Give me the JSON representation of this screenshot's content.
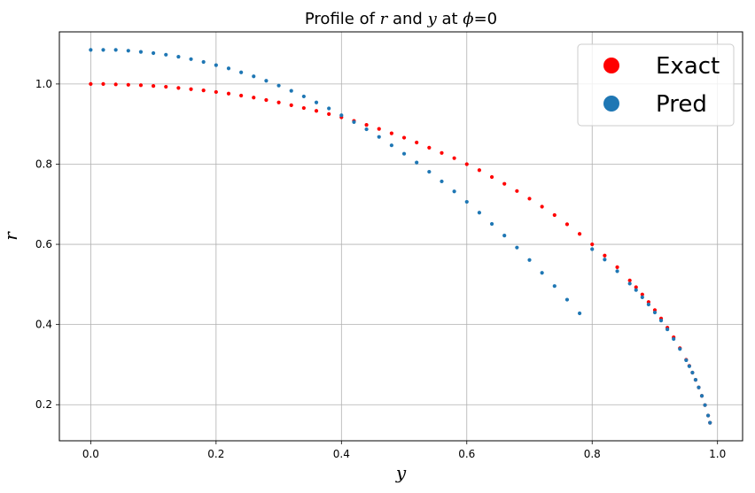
{
  "chart_data": {
    "type": "scatter",
    "title": "Profile of r and y at ϕ=0",
    "title_parts": {
      "pre": "Profile of ",
      "var1": "r",
      "mid": " and ",
      "var2": "y",
      "post": " at ",
      "phi": "ϕ",
      "eq": "=0"
    },
    "xlabel": "y",
    "ylabel": "r",
    "xlim": [
      -0.05,
      1.04
    ],
    "ylim": [
      0.11,
      1.13
    ],
    "xticks": [
      0.0,
      0.2,
      0.4,
      0.6,
      0.8,
      1.0
    ],
    "xtick_labels": [
      "0.0",
      "0.2",
      "0.4",
      "0.6",
      "0.8",
      "1.0"
    ],
    "yticks": [
      0.2,
      0.4,
      0.6,
      0.8,
      1.0
    ],
    "ytick_labels": [
      "0.2",
      "0.4",
      "0.6",
      "0.8",
      "1.0"
    ],
    "grid": true,
    "legend_position": "top-right",
    "series": [
      {
        "name": "Exact",
        "color": "#ff0000",
        "x": [
          0.0,
          0.02,
          0.04,
          0.06,
          0.08,
          0.1,
          0.12,
          0.14,
          0.16,
          0.18,
          0.2,
          0.22,
          0.24,
          0.26,
          0.28,
          0.3,
          0.32,
          0.34,
          0.36,
          0.38,
          0.4,
          0.42,
          0.44,
          0.46,
          0.48,
          0.5,
          0.52,
          0.54,
          0.56,
          0.58,
          0.6,
          0.62,
          0.64,
          0.66,
          0.68,
          0.7,
          0.72,
          0.74,
          0.76,
          0.78,
          0.8,
          0.82,
          0.84,
          0.86,
          0.87,
          0.88,
          0.89,
          0.9,
          0.91,
          0.92,
          0.93,
          0.94,
          0.95,
          0.955,
          0.96,
          0.965,
          0.97,
          0.975,
          0.98,
          0.985,
          0.988
        ],
        "y": [
          1.0,
          1.0,
          0.999,
          0.998,
          0.997,
          0.995,
          0.993,
          0.99,
          0.987,
          0.984,
          0.98,
          0.976,
          0.971,
          0.966,
          0.96,
          0.954,
          0.947,
          0.94,
          0.933,
          0.925,
          0.917,
          0.908,
          0.898,
          0.888,
          0.877,
          0.866,
          0.854,
          0.841,
          0.828,
          0.815,
          0.8,
          0.785,
          0.768,
          0.751,
          0.733,
          0.714,
          0.694,
          0.673,
          0.65,
          0.626,
          0.6,
          0.572,
          0.543,
          0.51,
          0.493,
          0.475,
          0.456,
          0.436,
          0.415,
          0.392,
          0.368,
          0.341,
          0.312,
          0.297,
          0.28,
          0.262,
          0.243,
          0.222,
          0.199,
          0.173,
          0.155
        ]
      },
      {
        "name": "Pred",
        "color": "#1f77b4",
        "x": [
          0.0,
          0.02,
          0.04,
          0.06,
          0.08,
          0.1,
          0.12,
          0.14,
          0.16,
          0.18,
          0.2,
          0.22,
          0.24,
          0.26,
          0.28,
          0.3,
          0.32,
          0.34,
          0.36,
          0.38,
          0.4,
          0.42,
          0.44,
          0.46,
          0.48,
          0.5,
          0.52,
          0.54,
          0.56,
          0.58,
          0.6,
          0.62,
          0.64,
          0.66,
          0.68,
          0.7,
          0.72,
          0.74,
          0.76,
          0.78,
          0.8,
          0.82,
          0.84,
          0.86,
          0.87,
          0.88,
          0.89,
          0.9,
          0.91,
          0.92,
          0.93,
          0.94,
          0.95,
          0.955,
          0.96,
          0.965,
          0.97,
          0.975,
          0.98,
          0.985,
          0.988
        ],
        "y": [
          1.085,
          1.085,
          1.085,
          1.083,
          1.08,
          1.077,
          1.073,
          1.068,
          1.062,
          1.055,
          1.047,
          1.039,
          1.029,
          1.019,
          1.008,
          0.996,
          0.983,
          0.969,
          0.954,
          0.939,
          0.922,
          0.905,
          0.887,
          0.868,
          0.847,
          0.826,
          0.804,
          0.781,
          0.757,
          0.732,
          0.706,
          0.679,
          0.651,
          0.622,
          0.592,
          0.561,
          0.529,
          0.496,
          0.462,
          0.428,
          0.588,
          0.562,
          0.533,
          0.502,
          0.486,
          0.468,
          0.45,
          0.43,
          0.41,
          0.388,
          0.364,
          0.339,
          0.311,
          0.296,
          0.28,
          0.262,
          0.243,
          0.222,
          0.199,
          0.173,
          0.155
        ]
      }
    ]
  }
}
